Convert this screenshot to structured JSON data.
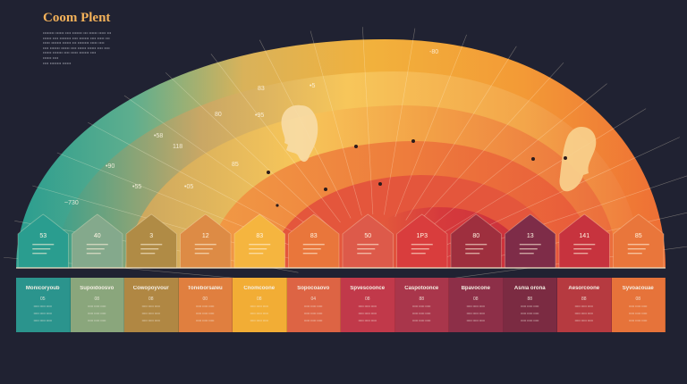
{
  "title": "Coom Plent",
  "intro_lines": [
    "•••••••• •••••• •••• ••••••• ••• •••••• ••••• •••",
    "•••••• •••• •••••••• •••• ••••••• •••• ••••• •••",
    "••••• ••••••• •••••• ••• •••••••• ••••• ••••",
    "•••• ••••••• •••••• •••• •••••• •••••• •••• ••••",
    "•••••• ••••••• •••• ••••• ••••••• ••••",
    "•••••• ••••",
    "•••• •••••••• ••••••"
  ],
  "arc_labels": [
    {
      "text": "~730"
    },
    {
      "text": "•90"
    },
    {
      "text": "•58"
    },
    {
      "text": "118"
    },
    {
      "text": "•55"
    },
    {
      "text": "•05"
    },
    {
      "text": "•95"
    },
    {
      "text": "80"
    },
    {
      "text": "83"
    },
    {
      "text": "-80"
    },
    {
      "text": "•5"
    },
    {
      "text": "85"
    }
  ],
  "petals": [
    {
      "label": "53",
      "color": "#2a9d8f"
    },
    {
      "label": "40",
      "color": "#84a98c"
    },
    {
      "label": "3",
      "color": "#b08b45"
    },
    {
      "label": "12",
      "color": "#dd8b45"
    },
    {
      "label": "83",
      "color": "#f5b53f"
    },
    {
      "label": "83",
      "color": "#e9763b"
    },
    {
      "label": "50",
      "color": "#dd5a4a"
    },
    {
      "label": "1P3",
      "color": "#d93d3d"
    },
    {
      "label": "80",
      "color": "#9e2f3e"
    },
    {
      "label": "13",
      "color": "#7e2c48"
    },
    {
      "label": "141",
      "color": "#c7333e"
    },
    {
      "label": "85",
      "color": "#e9763b"
    }
  ],
  "cards": [
    {
      "title": "Monicoryoub",
      "num": "05",
      "color": "#2b948d"
    },
    {
      "title": "Supoidoosvo",
      "num": "08",
      "color": "#8aa67c"
    },
    {
      "title": "Cowopoyvour",
      "num": "08",
      "color": "#b08743"
    },
    {
      "title": "Toneborsaleu",
      "num": "00",
      "color": "#e07f3f"
    },
    {
      "title": "Cnomcoone",
      "num": "08",
      "color": "#f2ad35"
    },
    {
      "title": "Sopocoaovo",
      "num": "04",
      "color": "#dd6444"
    },
    {
      "title": "Spvescoonce",
      "num": "08",
      "color": "#c1394a"
    },
    {
      "title": "Caspotoonce",
      "num": "88",
      "color": "#a9364b"
    },
    {
      "title": "Bpavocone",
      "num": "08",
      "color": "#8d2f48"
    },
    {
      "title": "Asnia orona",
      "num": "88",
      "color": "#7b2b42"
    },
    {
      "title": "Aesorcoone",
      "num": "88",
      "color": "#b63a40"
    },
    {
      "title": "Syvoacouae",
      "num": "08",
      "color": "#e6733a"
    }
  ],
  "card_desc": "••••• ••••• •••••",
  "palette": {
    "background": "#202232",
    "teal": "#2a9d8f",
    "sage": "#84a98c",
    "gold": "#e5b54a",
    "orange": "#ef8a3a",
    "red": "#d93d3d",
    "maroon": "#7e2c48"
  },
  "icons": [
    "face-silhouette-left",
    "face-silhouette-right"
  ]
}
